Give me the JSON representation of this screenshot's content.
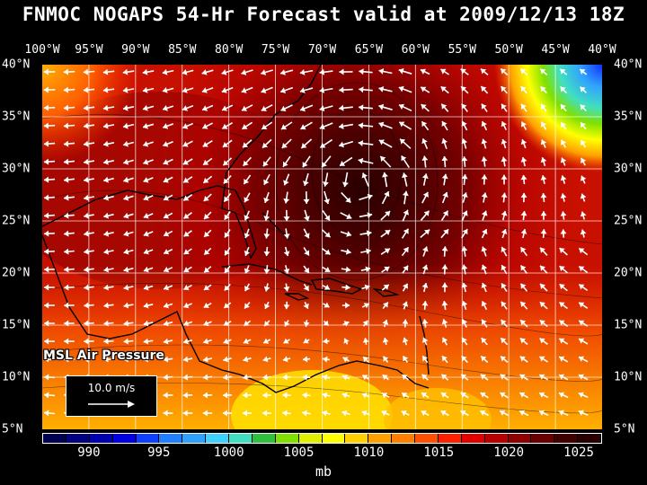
{
  "title": "FNMOC NOGAPS 54-Hr Forecast valid at 2009/12/13 18Z",
  "lon_labels": [
    "100°W",
    "95°W",
    "90°W",
    "85°W",
    "80°W",
    "75°W",
    "70°W",
    "65°W",
    "60°W",
    "55°W",
    "50°W",
    "45°W",
    "40°W"
  ],
  "lat_labels": [
    "40°N",
    "35°N",
    "30°N",
    "25°N",
    "20°N",
    "15°N",
    "10°N",
    "5°N"
  ],
  "layer_label": "MSL Air Pressure",
  "reference_vector_label": "10.0 m/s",
  "colorbar": {
    "units": "mb",
    "tick_labels": [
      "990",
      "995",
      "1000",
      "1005",
      "1010",
      "1015",
      "1020",
      "1025"
    ],
    "colors": [
      "#000050",
      "#000080",
      "#0000b0",
      "#0000e0",
      "#1040ff",
      "#2080ff",
      "#30a0ff",
      "#40d0ff",
      "#40e0c0",
      "#30c040",
      "#80e000",
      "#e0f000",
      "#ffff00",
      "#ffd000",
      "#ffa000",
      "#ff8000",
      "#ff5000",
      "#ff2000",
      "#e00000",
      "#b80000",
      "#900000",
      "#680000",
      "#400000",
      "#280000"
    ]
  }
}
